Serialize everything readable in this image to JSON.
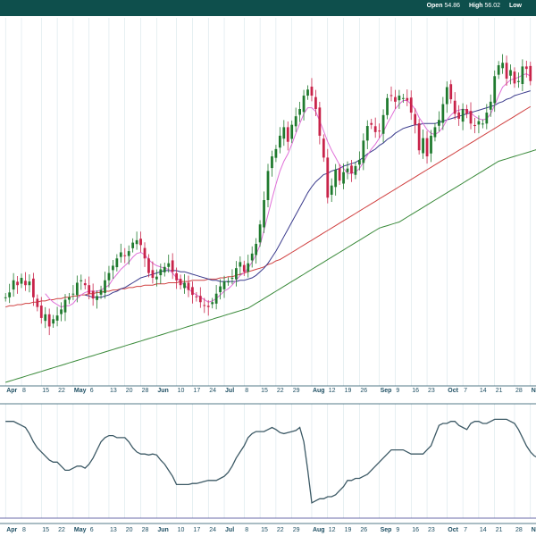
{
  "header": {
    "items": [
      {
        "key": "Open",
        "value": "54.86"
      },
      {
        "key": "High",
        "value": "56.02"
      },
      {
        "key": "Low",
        "value": ""
      }
    ]
  },
  "colors": {
    "header_bg": "#0e4f4c",
    "up": "#1f7a2e",
    "down": "#c8244a",
    "ma_short": "#e070d8",
    "ma_mid": "#3a3a8c",
    "ma_long": "#d04040",
    "ma_longest": "#3a8a3a",
    "indicator": "#3d5a66",
    "axis": "#1e4f63",
    "grid": "#cfe0e6"
  },
  "chart_data": {
    "type": "candlestick",
    "price_range": [
      30,
      60
    ],
    "xaxis_ticks": [
      {
        "label": "Apr",
        "month": true
      },
      {
        "label": "8"
      },
      {
        "label": "15"
      },
      {
        "label": "22"
      },
      {
        "label": "May",
        "month": true
      },
      {
        "label": "6"
      },
      {
        "label": "13"
      },
      {
        "label": "20"
      },
      {
        "label": "28"
      },
      {
        "label": "Jun",
        "month": true
      },
      {
        "label": "10"
      },
      {
        "label": "17"
      },
      {
        "label": "24"
      },
      {
        "label": "Jul",
        "month": true
      },
      {
        "label": "8"
      },
      {
        "label": "15"
      },
      {
        "label": "22"
      },
      {
        "label": "29"
      },
      {
        "label": "Aug",
        "month": true
      },
      {
        "label": "12"
      },
      {
        "label": "19"
      },
      {
        "label": "26"
      },
      {
        "label": "Sep",
        "month": true
      },
      {
        "label": "9"
      },
      {
        "label": "16"
      },
      {
        "label": "23"
      },
      {
        "label": "Oct",
        "month": true
      },
      {
        "label": "7"
      },
      {
        "label": "14"
      },
      {
        "label": "21"
      },
      {
        "label": "28"
      },
      {
        "label": "Nov",
        "month": true
      }
    ],
    "close": [
      37.0,
      37.4,
      38.4,
      38.0,
      38.6,
      38.0,
      38.3,
      37.0,
      36.2,
      35.3,
      35.6,
      34.6,
      35.2,
      35.5,
      36.0,
      36.8,
      37.0,
      37.3,
      38.2,
      38.4,
      38.0,
      37.3,
      36.9,
      37.1,
      37.6,
      38.4,
      39.0,
      39.6,
      40.2,
      40.7,
      40.4,
      40.8,
      41.5,
      41.7,
      41.3,
      40.2,
      39.0,
      38.6,
      38.7,
      39.3,
      39.5,
      39.8,
      39.1,
      38.4,
      38.0,
      38.2,
      37.6,
      37.2,
      37.0,
      36.6,
      36.3,
      36.2,
      36.6,
      37.3,
      37.9,
      38.3,
      38.3,
      38.6,
      39.4,
      39.9,
      39.1,
      39.8,
      40.6,
      41.4,
      43.0,
      45.0,
      47.4,
      48.6,
      49.2,
      50.3,
      51.0,
      49.8,
      51.2,
      51.9,
      52.5,
      53.6,
      54.1,
      53.6,
      52.5,
      50.3,
      48.5,
      45.2,
      46.2,
      47.5,
      46.6,
      47.3,
      47.6,
      47.2,
      47.8,
      48.3,
      49.9,
      51.1,
      51.2,
      50.6,
      50.7,
      52.0,
      53.4,
      53.6,
      53.1,
      53.6,
      53.4,
      53.2,
      52.2,
      51.2,
      49.1,
      50.1,
      48.6,
      50.3,
      51.0,
      51.6,
      52.9,
      54.3,
      53.3,
      52.1,
      51.7,
      52.5,
      52.1,
      51.3,
      51.1,
      51.5,
      51.3,
      52.2,
      53.1,
      55.2,
      56.1,
      56.3,
      55.0,
      55.7,
      54.6,
      54.8,
      56.0,
      55.8,
      54.8
    ],
    "ma_short": [
      null,
      null,
      null,
      null,
      null,
      null,
      null,
      null,
      null,
      null,
      37.3,
      36.9,
      36.6,
      36.4,
      36.2,
      36.3,
      36.3,
      36.5,
      36.9,
      37.2,
      37.4,
      37.5,
      37.5,
      37.5,
      37.6,
      37.8,
      38.0,
      38.5,
      38.9,
      39.3,
      39.6,
      39.9,
      40.3,
      40.6,
      40.7,
      40.5,
      40.1,
      39.8,
      39.6,
      39.5,
      39.4,
      39.3,
      39.0,
      38.6,
      38.3,
      38.0,
      37.7,
      37.4,
      37.2,
      37.0,
      36.8,
      36.6,
      36.7,
      36.9,
      37.2,
      37.5,
      37.7,
      38.0,
      38.4,
      38.8,
      39.0,
      39.4,
      39.9,
      40.5,
      41.3,
      42.5,
      43.8,
      45.1,
      46.3,
      47.4,
      48.2,
      48.8,
      49.6,
      50.5,
      51.3,
      52.1,
      52.6,
      52.6,
      52.3,
      51.5,
      50.7,
      49.8,
      49.1,
      48.5,
      47.9,
      47.6,
      47.2,
      47.2,
      47.3,
      47.6,
      48.1,
      48.7,
      49.2,
      49.6,
      50.1,
      50.6,
      51.3,
      51.9,
      52.5,
      52.9,
      53.2,
      53.2,
      52.9,
      52.5,
      51.8,
      51.3,
      50.8,
      50.5,
      50.4,
      50.6,
      51.0,
      51.6,
      52.0,
      52.3,
      52.4,
      52.5,
      52.4,
      52.2,
      51.9,
      51.7,
      51.6,
      51.7,
      52.1,
      52.8,
      53.6,
      54.3,
      54.6,
      54.9,
      55.0,
      55.1,
      55.3,
      55.4,
      55.2
    ],
    "ma_mid": [
      null,
      null,
      null,
      null,
      null,
      null,
      null,
      null,
      null,
      null,
      null,
      null,
      null,
      null,
      null,
      null,
      null,
      null,
      null,
      null,
      37.2,
      37.1,
      37.0,
      37.0,
      37.0,
      37.1,
      37.2,
      37.4,
      37.5,
      37.7,
      37.8,
      38.0,
      38.2,
      38.4,
      38.6,
      38.7,
      38.8,
      38.9,
      39.0,
      39.1,
      39.2,
      39.2,
      39.2,
      39.2,
      39.1,
      39.1,
      39.0,
      38.9,
      38.8,
      38.7,
      38.6,
      38.5,
      38.4,
      38.4,
      38.3,
      38.3,
      38.3,
      38.3,
      38.3,
      38.4,
      38.4,
      38.5,
      38.6,
      38.8,
      39.1,
      39.4,
      39.8,
      40.3,
      40.8,
      41.4,
      42.0,
      42.6,
      43.2,
      43.8,
      44.4,
      45.0,
      45.6,
      46.1,
      46.5,
      46.8,
      47.1,
      47.2,
      47.4,
      47.5,
      47.6,
      47.8,
      47.9,
      48.0,
      48.1,
      48.3,
      48.5,
      48.8,
      49.0,
      49.2,
      49.5,
      49.7,
      50.0,
      50.2,
      50.5,
      50.7,
      50.9,
      51.0,
      51.1,
      51.2,
      51.2,
      51.3,
      51.3,
      51.3,
      51.3,
      51.4,
      51.5,
      51.6,
      51.7,
      51.8,
      51.9,
      52.0,
      52.1,
      52.2,
      52.3,
      52.4,
      52.5,
      52.6,
      52.7,
      52.8,
      53.0,
      53.1,
      53.3,
      53.4,
      53.6,
      53.7,
      53.8,
      53.9,
      54.0
    ],
    "ma_long": [
      36.2,
      36.3,
      36.3,
      36.4,
      36.4,
      36.5,
      36.5,
      36.6,
      36.6,
      36.7,
      36.7,
      36.8,
      36.8,
      36.9,
      36.9,
      37.0,
      37.0,
      37.1,
      37.1,
      37.2,
      37.2,
      37.3,
      37.3,
      37.4,
      37.4,
      37.5,
      37.5,
      37.6,
      37.6,
      37.7,
      37.7,
      37.8,
      37.8,
      37.9,
      37.9,
      38.0,
      38.0,
      38.0,
      38.1,
      38.1,
      38.1,
      38.2,
      38.2,
      38.2,
      38.3,
      38.3,
      38.3,
      38.4,
      38.4,
      38.4,
      38.4,
      38.5,
      38.5,
      38.5,
      38.6,
      38.6,
      38.7,
      38.7,
      38.8,
      38.9,
      39.0,
      39.1,
      39.2,
      39.3,
      39.4,
      39.5,
      39.7,
      39.8,
      40.0,
      40.1,
      40.3,
      40.5,
      40.7,
      40.9,
      41.1,
      41.3,
      41.5,
      41.7,
      41.9,
      42.1,
      42.3,
      42.5,
      42.7,
      42.9,
      43.1,
      43.3,
      43.5,
      43.7,
      43.9,
      44.1,
      44.3,
      44.5,
      44.7,
      44.9,
      45.1,
      45.3,
      45.5,
      45.7,
      45.9,
      46.1,
      46.3,
      46.5,
      46.7,
      46.9,
      47.1,
      47.3,
      47.5,
      47.7,
      47.9,
      48.1,
      48.3,
      48.5,
      48.7,
      48.9,
      49.1,
      49.3,
      49.5,
      49.7,
      49.9,
      50.1,
      50.3,
      50.5,
      50.7,
      50.9,
      51.1,
      51.3,
      51.5,
      51.7,
      51.9,
      52.1,
      52.3,
      52.5,
      52.7
    ],
    "ma_longest": [
      30.0,
      30.1,
      30.2,
      30.3,
      30.4,
      30.5,
      30.6,
      30.7,
      30.8,
      30.9,
      31.0,
      31.1,
      31.2,
      31.3,
      31.4,
      31.5,
      31.6,
      31.7,
      31.8,
      31.9,
      32.0,
      32.1,
      32.2,
      32.3,
      32.4,
      32.5,
      32.6,
      32.7,
      32.8,
      32.9,
      33.0,
      33.1,
      33.2,
      33.3,
      33.4,
      33.5,
      33.6,
      33.7,
      33.8,
      33.9,
      34.0,
      34.1,
      34.2,
      34.3,
      34.4,
      34.5,
      34.6,
      34.7,
      34.8,
      34.9,
      35.0,
      35.1,
      35.2,
      35.3,
      35.4,
      35.5,
      35.6,
      35.7,
      35.8,
      35.9,
      36.0,
      36.1,
      36.3,
      36.5,
      36.7,
      36.9,
      37.1,
      37.3,
      37.5,
      37.7,
      37.9,
      38.1,
      38.3,
      38.5,
      38.7,
      38.9,
      39.1,
      39.3,
      39.5,
      39.7,
      39.9,
      40.1,
      40.3,
      40.5,
      40.7,
      40.9,
      41.1,
      41.3,
      41.5,
      41.7,
      41.9,
      42.1,
      42.3,
      42.5,
      42.7,
      42.8,
      42.9,
      43.0,
      43.1,
      43.2,
      43.4,
      43.6,
      43.8,
      44.0,
      44.2,
      44.4,
      44.6,
      44.8,
      45.0,
      45.2,
      45.4,
      45.6,
      45.8,
      46.0,
      46.2,
      46.4,
      46.6,
      46.8,
      47.0,
      47.2,
      47.4,
      47.6,
      47.8,
      48.0,
      48.2,
      48.3,
      48.4,
      48.5,
      48.6,
      48.7,
      48.8,
      48.9,
      49.0,
      49.1,
      49.2
    ],
    "indicator": {
      "range": [
        0,
        100
      ],
      "values": [
        88,
        88,
        88,
        86,
        84,
        82,
        76,
        68,
        62,
        58,
        54,
        50,
        48,
        48,
        44,
        40,
        40,
        42,
        44,
        44,
        42,
        46,
        52,
        60,
        68,
        72,
        74,
        74,
        72,
        72,
        72,
        68,
        62,
        58,
        56,
        56,
        55,
        56,
        55,
        50,
        46,
        40,
        34,
        26,
        26,
        26,
        26,
        27,
        27,
        28,
        29,
        30,
        30,
        30,
        32,
        34,
        38,
        44,
        52,
        58,
        64,
        72,
        76,
        78,
        78,
        78,
        80,
        82,
        80,
        77,
        76,
        77,
        78,
        79,
        82,
        68,
        40,
        8,
        10,
        12,
        12,
        14,
        14,
        16,
        20,
        24,
        30,
        30,
        32,
        32,
        34,
        36,
        40,
        44,
        48,
        52,
        56,
        60,
        60,
        60,
        60,
        58,
        56,
        56,
        56,
        56,
        60,
        64,
        74,
        84,
        86,
        86,
        88,
        88,
        84,
        82,
        80,
        86,
        88,
        88,
        86,
        86,
        88,
        90,
        90,
        90,
        90,
        88,
        86,
        80,
        72,
        64,
        58,
        54,
        52
      ]
    }
  }
}
